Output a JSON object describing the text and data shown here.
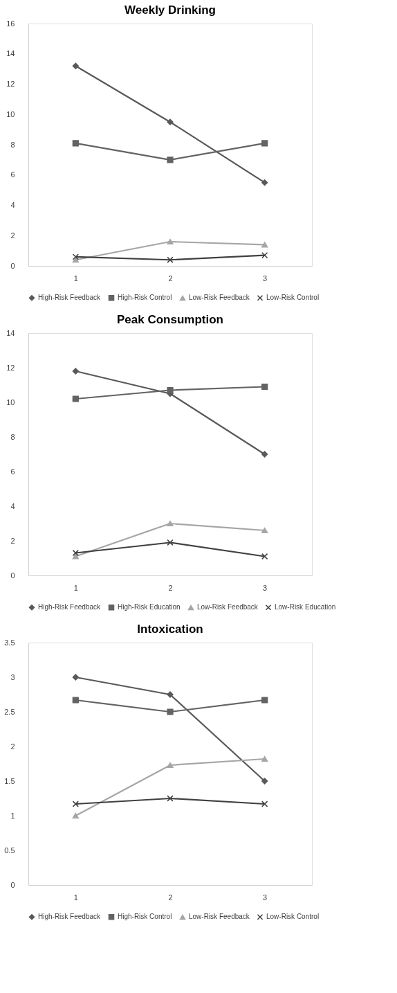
{
  "chart_data": [
    {
      "type": "line",
      "title": "Weekly Drinking",
      "categories": [
        "1",
        "2",
        "3"
      ],
      "ylim": [
        0,
        16
      ],
      "yticks": [
        0,
        2,
        4,
        6,
        8,
        10,
        12,
        14,
        16
      ],
      "legend": "bottom",
      "line_style": "solid",
      "series": [
        {
          "name": "High-Risk Feedback",
          "color": "#595959",
          "marker": "diamond",
          "values": [
            13.2,
            9.5,
            5.5
          ]
        },
        {
          "name": "High-Risk Control",
          "color": "#636363",
          "marker": "square",
          "values": [
            8.1,
            7.0,
            8.1
          ]
        },
        {
          "name": "Low-Risk Feedback",
          "color": "#a6a6a6",
          "marker": "triangle",
          "values": [
            0.4,
            1.6,
            1.4
          ]
        },
        {
          "name": "Low-Risk Control",
          "color": "#404040",
          "marker": "cross",
          "values": [
            0.6,
            0.4,
            0.7
          ]
        }
      ]
    },
    {
      "type": "line",
      "title": "Peak Consumption",
      "categories": [
        "1",
        "2",
        "3"
      ],
      "ylim": [
        0,
        14
      ],
      "yticks": [
        0,
        2,
        4,
        6,
        8,
        10,
        12,
        14
      ],
      "legend": "bottom",
      "line_style": "solid",
      "series": [
        {
          "name": "High-Risk Feedback",
          "color": "#595959",
          "marker": "diamond",
          "values": [
            11.8,
            10.5,
            7.0
          ]
        },
        {
          "name": "High-Risk Education",
          "color": "#636363",
          "marker": "square",
          "values": [
            10.2,
            10.7,
            10.9
          ]
        },
        {
          "name": "Low-Risk Feedback",
          "color": "#a6a6a6",
          "marker": "triangle",
          "values": [
            1.1,
            3.0,
            2.6
          ]
        },
        {
          "name": "Low-Risk Education",
          "color": "#404040",
          "marker": "cross",
          "values": [
            1.3,
            1.9,
            1.1
          ]
        }
      ]
    },
    {
      "type": "line",
      "title": "Intoxication",
      "categories": [
        "1",
        "2",
        "3"
      ],
      "ylim": [
        0,
        3.5
      ],
      "yticks": [
        0,
        0.5,
        1,
        1.5,
        2,
        2.5,
        3,
        3.5
      ],
      "legend": "bottom",
      "line_style": "solid",
      "series": [
        {
          "name": "High-Risk Feedback",
          "color": "#595959",
          "marker": "diamond",
          "values": [
            3.0,
            2.75,
            1.5
          ]
        },
        {
          "name": "High-Risk Control",
          "color": "#636363",
          "marker": "square",
          "values": [
            2.67,
            2.5,
            2.67
          ]
        },
        {
          "name": "Low-Risk Feedback",
          "color": "#a6a6a6",
          "marker": "triangle",
          "values": [
            1.0,
            1.73,
            1.82
          ]
        },
        {
          "name": "Low-Risk Control",
          "color": "#404040",
          "marker": "cross",
          "values": [
            1.17,
            1.25,
            1.17
          ]
        }
      ]
    }
  ]
}
